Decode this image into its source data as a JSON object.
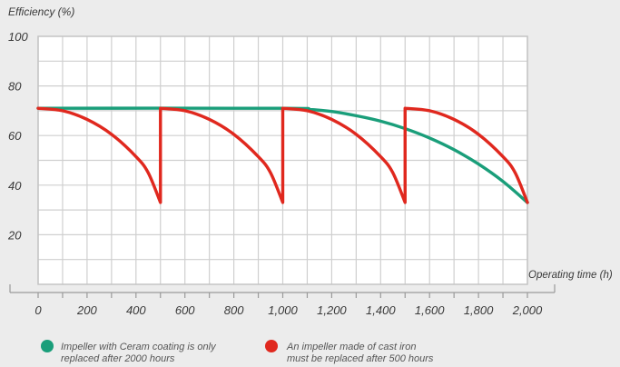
{
  "chart_data": {
    "type": "line",
    "ylabel": "Efficiency (%)",
    "xlabel": "Operating time (h)",
    "xlim": [
      0,
      2000
    ],
    "ylim": [
      0,
      100
    ],
    "grid": true,
    "xticks": [
      0,
      200,
      400,
      600,
      800,
      1000,
      1200,
      1400,
      1600,
      1800,
      2000
    ],
    "xtick_labels": [
      "0",
      "200",
      "400",
      "600",
      "800",
      "1,000",
      "1,200",
      "1,400",
      "1,600",
      "1,800",
      "2,000"
    ],
    "yticks": [
      20,
      40,
      60,
      80,
      100
    ],
    "ytick_labels": [
      "20",
      "40",
      "60",
      "80",
      "100"
    ],
    "legend_position": "bottom",
    "series": [
      {
        "name": "Impeller with Ceram coating is only replaced after 2000 hours",
        "color": "#1a9e7a",
        "x": [
          0,
          1000,
          1100,
          1200,
          1300,
          1400,
          1500,
          1600,
          1700,
          1800,
          1900,
          2000
        ],
        "y": [
          71,
          71,
          70.6,
          69.7,
          68,
          65.8,
          62.8,
          59,
          54.3,
          48.5,
          41.5,
          33
        ]
      },
      {
        "name": "An impeller made of cast iron must be replaced after 500 hours",
        "color": "#e0281e",
        "x": [
          0,
          100,
          200,
          300,
          400,
          450,
          500,
          500,
          600,
          700,
          800,
          900,
          950,
          1000,
          1000,
          1100,
          1200,
          1300,
          1400,
          1450,
          1500,
          1500,
          1600,
          1700,
          1800,
          1900,
          1950,
          2000
        ],
        "y": [
          71,
          70,
          66.5,
          60.5,
          51.5,
          45,
          33,
          71,
          70,
          66.5,
          60.5,
          51.5,
          45,
          33,
          71,
          70,
          66.5,
          60.5,
          51.5,
          45,
          33,
          71,
          70,
          66.5,
          60.5,
          51.5,
          45,
          33
        ]
      }
    ]
  }
}
